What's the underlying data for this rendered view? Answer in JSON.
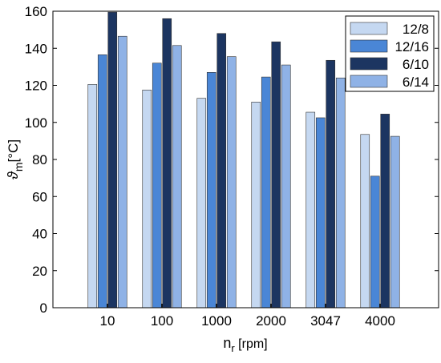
{
  "chart_data": {
    "type": "bar",
    "categories": [
      "10",
      "100",
      "1000",
      "2000",
      "3047",
      "4000"
    ],
    "series": [
      {
        "name": "12/8",
        "color": "#c5d8f1",
        "values": [
          120.5,
          117.5,
          113,
          111,
          105.5,
          93.5
        ]
      },
      {
        "name": "12/16",
        "color": "#4a86d6",
        "values": [
          136.5,
          132,
          127,
          124.5,
          102.5,
          71
        ]
      },
      {
        "name": "6/10",
        "color": "#1c3561",
        "values": [
          159.5,
          156,
          148,
          143.5,
          133.5,
          104.5
        ]
      },
      {
        "name": "6/14",
        "color": "#8fb2e6",
        "values": [
          146.5,
          141.5,
          135.5,
          131,
          124,
          92.5
        ]
      }
    ],
    "ylim": [
      0,
      160
    ],
    "yticks": [
      "0",
      "20",
      "40",
      "60",
      "80",
      "100",
      "120",
      "140",
      "160"
    ],
    "xlabel": {
      "main": "n",
      "sub": "r",
      "unit": " [rpm]"
    },
    "ylabel": {
      "main": "ϑ",
      "sub": "m",
      "unit": "[°C]"
    },
    "legend_position": "top-right",
    "grid": false
  }
}
